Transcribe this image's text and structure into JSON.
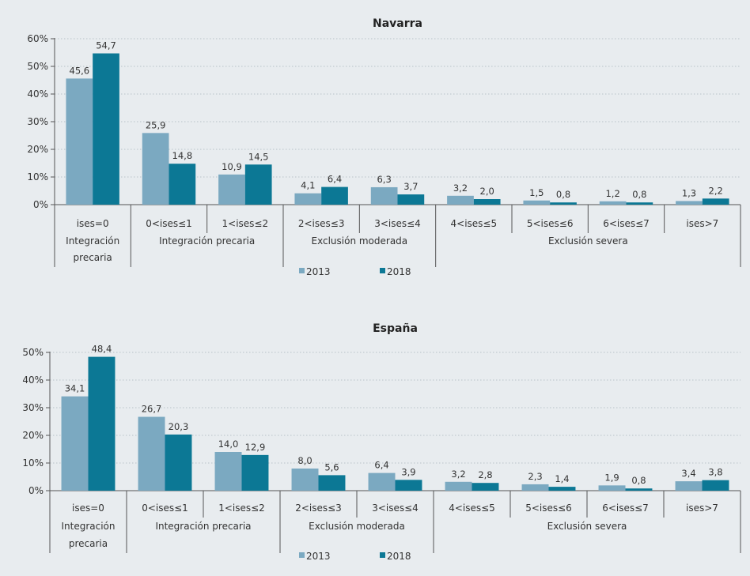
{
  "colors": {
    "s2013": "#7ba9c1",
    "s2018": "#0c7895",
    "background": "#e8ecef",
    "grid": "#b9c2c8",
    "axis": "#555555"
  },
  "legend": [
    "2013",
    "2018"
  ],
  "categories": [
    "ises=0",
    "0<ises≤1",
    "1<ises≤2",
    "2<ises≤3",
    "3<ises≤4",
    "4<ises≤5",
    "5<ises≤6",
    "6<ises≤7",
    "ises>7"
  ],
  "groups": [
    {
      "lines": [
        "Integración",
        "precaria"
      ],
      "from": 0,
      "to": 0
    },
    {
      "lines": [
        "Integración precaria"
      ],
      "from": 1,
      "to": 2
    },
    {
      "lines": [
        "Exclusión moderada"
      ],
      "from": 3,
      "to": 4
    },
    {
      "lines": [
        "Exclusión severa"
      ],
      "from": 5,
      "to": 8
    }
  ],
  "chart_data": [
    {
      "type": "bar",
      "title": "Navarra",
      "categories": [
        "ises=0",
        "0<ises≤1",
        "1<ises≤2",
        "2<ises≤3",
        "3<ises≤4",
        "4<ises≤5",
        "5<ises≤6",
        "6<ises≤7",
        "ises>7"
      ],
      "series": [
        {
          "name": "2013",
          "values": [
            45.6,
            25.9,
            10.9,
            4.1,
            6.3,
            3.2,
            1.5,
            1.2,
            1.3
          ],
          "labels": [
            "45,6",
            "25,9",
            "10,9",
            "4,1",
            "6,3",
            "3,2",
            "1,5",
            "1,2",
            "1,3"
          ]
        },
        {
          "name": "2018",
          "values": [
            54.7,
            14.8,
            14.5,
            6.4,
            3.7,
            2.0,
            0.8,
            0.8,
            2.2
          ],
          "labels": [
            "54,7",
            "14,8",
            "14,5",
            "6,4",
            "3,7",
            "2,0",
            "0,8",
            "0,8",
            "2,2"
          ]
        }
      ],
      "ylim": [
        0,
        60
      ],
      "yticks": [
        "0%",
        "10%",
        "20%",
        "30%",
        "40%",
        "50%",
        "60%"
      ],
      "grid": true,
      "legend_position": "bottom"
    },
    {
      "type": "bar",
      "title": "España",
      "categories": [
        "ises=0",
        "0<ises≤1",
        "1<ises≤2",
        "2<ises≤3",
        "3<ises≤4",
        "4<ises≤5",
        "5<ises≤6",
        "6<ises≤7",
        "ises>7"
      ],
      "series": [
        {
          "name": "2013",
          "values": [
            34.1,
            26.7,
            14.0,
            8.0,
            6.4,
            3.2,
            2.3,
            1.9,
            3.4
          ],
          "labels": [
            "34,1",
            "26,7",
            "14,0",
            "8,0",
            "6,4",
            "3,2",
            "2,3",
            "1,9",
            "3,4"
          ]
        },
        {
          "name": "2018",
          "values": [
            48.4,
            20.3,
            12.9,
            5.6,
            3.9,
            2.8,
            1.4,
            0.8,
            3.8
          ],
          "labels": [
            "48,4",
            "20,3",
            "12,9",
            "5,6",
            "3,9",
            "2,8",
            "1,4",
            "0,8",
            "3,8"
          ]
        }
      ],
      "ylim": [
        0,
        50
      ],
      "yticks": [
        "0%",
        "10%",
        "20%",
        "30%",
        "40%",
        "50%"
      ],
      "grid": true,
      "legend_position": "bottom"
    }
  ]
}
